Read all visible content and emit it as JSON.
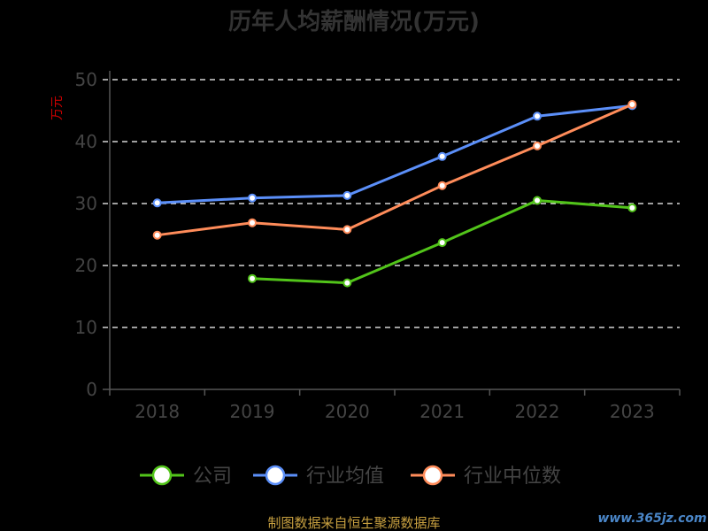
{
  "chart_data": {
    "type": "line",
    "title": "历年人均薪酬情况(万元)",
    "ylabel": "万元",
    "xlabel": "",
    "categories": [
      "2018",
      "2019",
      "2020",
      "2021",
      "2022",
      "2023"
    ],
    "ylim": [
      0,
      50
    ],
    "yticks": [
      0,
      10,
      20,
      30,
      40,
      50
    ],
    "grid": true,
    "legend_position": "bottom",
    "series": [
      {
        "name": "公司",
        "color": "#52c41a",
        "values": [
          null,
          17.9,
          17.2,
          23.7,
          30.5,
          29.3
        ]
      },
      {
        "name": "行业均值",
        "color": "#5b8ff9",
        "values": [
          30.1,
          30.9,
          31.3,
          37.6,
          44.1,
          45.8
        ]
      },
      {
        "name": "行业中位数",
        "color": "#ff8c5a",
        "values": [
          24.9,
          26.9,
          25.8,
          32.9,
          39.3,
          46.0
        ]
      }
    ]
  },
  "footer": {
    "source": "制图数据来自恒生聚源数据库",
    "watermark": "www.365jz.com"
  }
}
